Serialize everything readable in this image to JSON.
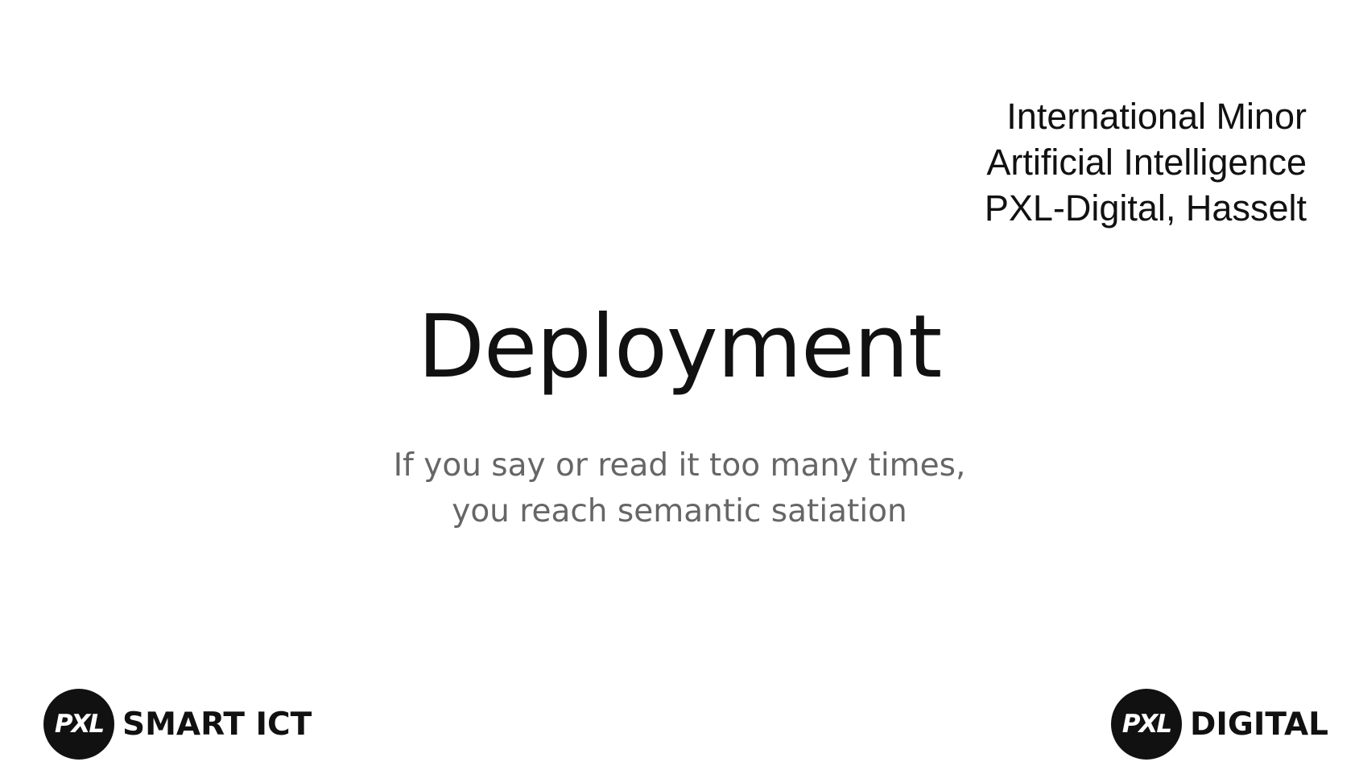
{
  "org": {
    "line1": "International Minor",
    "line2": "Artificial Intelligence",
    "line3": "PXL-Digital, Hasselt"
  },
  "title": "Deployment",
  "subtitle": {
    "line1": "If you say or read it too many times,",
    "line2": "you reach semantic satiation"
  },
  "logos": {
    "left": {
      "mark": "PXL",
      "word": "SMART ICT"
    },
    "right": {
      "mark": "PXL",
      "word": "DIGITAL"
    }
  }
}
